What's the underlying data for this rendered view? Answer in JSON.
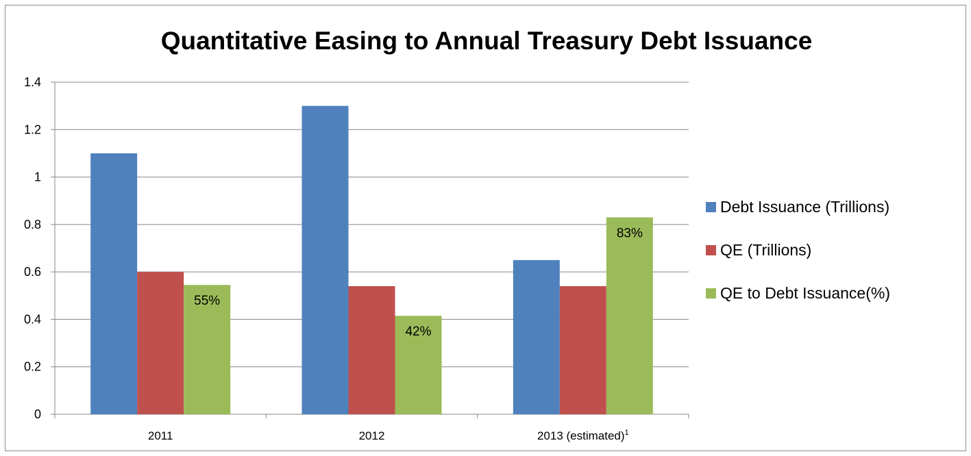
{
  "chart_data": {
    "type": "bar",
    "title": "Quantitative Easing to Annual Treasury Debt Issuance",
    "categories": [
      "2011",
      "2012",
      "2013 (estimated)"
    ],
    "category_superscripts": [
      "",
      "",
      "1"
    ],
    "series": [
      {
        "name": "Debt Issuance (Trillions)",
        "values": [
          1.1,
          1.3,
          0.65
        ],
        "color": "#4f81bd",
        "labels": [
          "",
          "",
          ""
        ]
      },
      {
        "name": "QE (Trillions)",
        "values": [
          0.6,
          0.54,
          0.54
        ],
        "color": "#c0504d",
        "labels": [
          "",
          "",
          ""
        ]
      },
      {
        "name": "QE to Debt Issuance(%)",
        "values": [
          0.545,
          0.415,
          0.83
        ],
        "color": "#9bbb59",
        "labels": [
          "55%",
          "42%",
          "83%"
        ]
      }
    ],
    "ylim": [
      0,
      1.4
    ],
    "yticks": [
      "0",
      "0.2",
      "0.4",
      "0.6",
      "0.8",
      "1",
      "1.2",
      "1.4"
    ],
    "ytick_values": [
      0,
      0.2,
      0.4,
      0.6,
      0.8,
      1,
      1.2,
      1.4
    ],
    "grid": true,
    "legend": "right",
    "gridline_color": "#868686"
  }
}
